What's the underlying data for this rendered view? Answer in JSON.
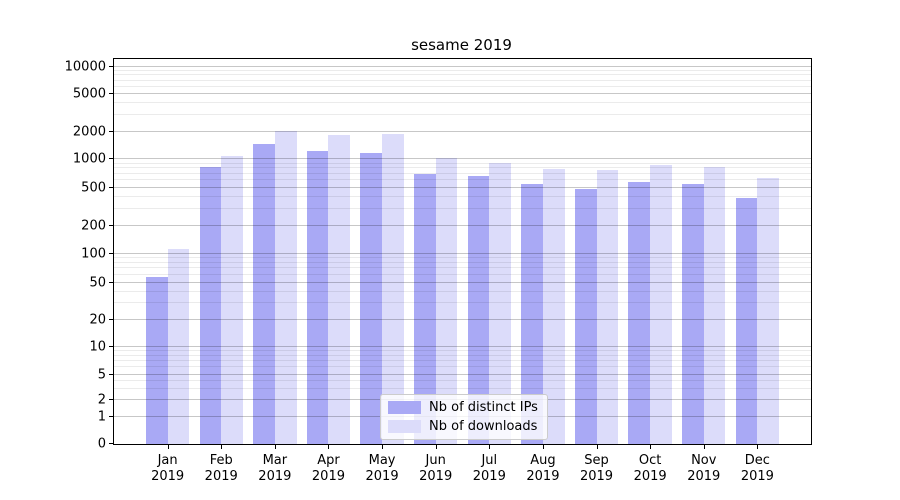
{
  "chart_data": {
    "type": "bar",
    "title": "sesame 2019",
    "categories": [
      "Jan",
      "Feb",
      "Mar",
      "Apr",
      "May",
      "Jun",
      "Jul",
      "Aug",
      "Sep",
      "Oct",
      "Nov",
      "Dec"
    ],
    "category_year": "2019",
    "series": [
      {
        "name": "Nb of distinct IPs",
        "color": "#a9a9f5",
        "values": [
          57,
          830,
          1480,
          1230,
          1170,
          690,
          670,
          550,
          485,
          575,
          545,
          390
        ]
      },
      {
        "name": "Nb of downloads",
        "color": "#dcdcfa",
        "values": [
          112,
          1080,
          2060,
          1840,
          1880,
          1040,
          910,
          790,
          760,
          860,
          830,
          630
        ]
      }
    ],
    "y_ticks": [
      0,
      1,
      2,
      5,
      10,
      20,
      50,
      100,
      200,
      500,
      1000,
      2000,
      5000,
      10000
    ],
    "yscale": "symlog",
    "ylim": [
      0,
      12000
    ],
    "grid": true,
    "legend_position": "lower center"
  }
}
